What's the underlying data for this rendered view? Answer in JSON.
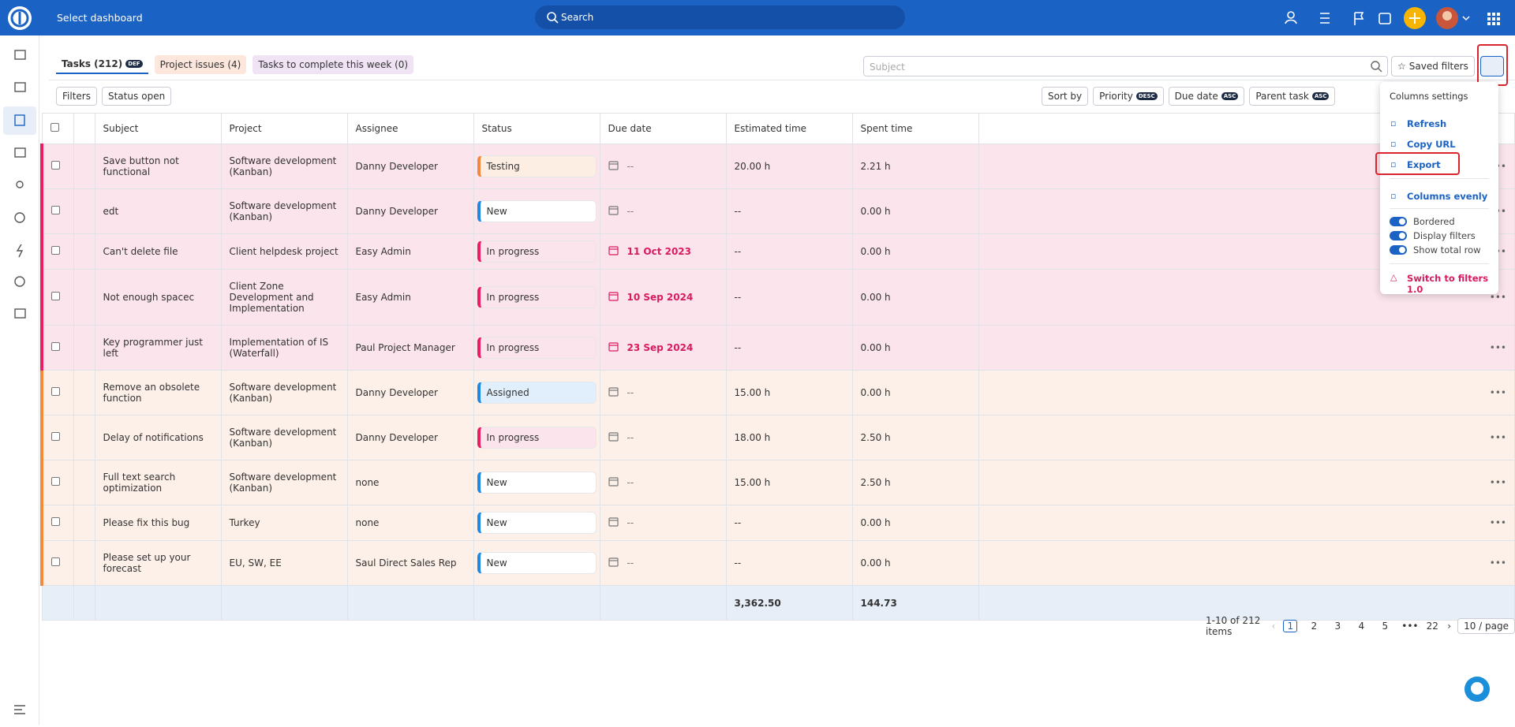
{
  "header": {
    "dashboard": "Select dashboard",
    "search": "Search"
  },
  "tabs": [
    {
      "label": "Tasks (212)",
      "badge": "DEF"
    },
    {
      "label": "Project issues (4)"
    },
    {
      "label": "Tasks to complete this week (0)"
    }
  ],
  "search_placeholder": "Subject",
  "saved_filters": "Saved filters",
  "filters": {
    "button": "Filters",
    "chips": [
      {
        "label": "Status",
        "value": "open"
      }
    ]
  },
  "sort": {
    "button": "Sort by",
    "chips": [
      {
        "label": "Priority",
        "badge": "DESC"
      },
      {
        "label": "Due date",
        "badge": "ASC"
      },
      {
        "label": "Parent task",
        "badge": "ASC"
      }
    ]
  },
  "table": {
    "columns": [
      "Subject",
      "Project",
      "Assignee",
      "Status",
      "Due date",
      "Estimated time",
      "Spent time"
    ],
    "rows": [
      {
        "subject": "Save button not functional",
        "project": "Software development (Kanban)",
        "assignee": "Danny Developer",
        "status": "Testing",
        "due": "--",
        "estimated": "20.00 h",
        "spent": "2.21 h",
        "accent": "#e91e63",
        "bg": "#fbe4ec",
        "status_color": "#f0883e",
        "status_bg": "#fdeee4",
        "overdue": false
      },
      {
        "subject": "edt",
        "project": "Software development (Kanban)",
        "assignee": "Danny Developer",
        "status": "New",
        "due": "--",
        "estimated": "--",
        "spent": "0.00 h",
        "accent": "#e91e63",
        "bg": "#fbe4ec",
        "status_color": "#1e88e5",
        "status_bg": "#ffffff",
        "overdue": false
      },
      {
        "subject": "Can't delete file",
        "project": "Client helpdesk project",
        "assignee": "Easy Admin",
        "status": "In progress",
        "due": "11 Oct 2023",
        "estimated": "--",
        "spent": "0.00 h",
        "accent": "#e91e63",
        "bg": "#fbe4ec",
        "status_color": "#e91e63",
        "status_bg": "#fbe4ec",
        "overdue": true
      },
      {
        "subject": "Not enough spacec",
        "project": "Client Zone Development and Implementation",
        "assignee": "Easy Admin",
        "status": "In progress",
        "due": "10 Sep 2024",
        "estimated": "--",
        "spent": "0.00 h",
        "accent": "#e91e63",
        "bg": "#fbe4ec",
        "status_color": "#e91e63",
        "status_bg": "#fbe4ec",
        "overdue": true
      },
      {
        "subject": "Key programmer just left",
        "project": "Implementation of IS (Waterfall)",
        "assignee": "Paul Project Manager",
        "status": "In progress",
        "due": "23 Sep 2024",
        "estimated": "--",
        "spent": "0.00 h",
        "accent": "#e91e63",
        "bg": "#fbe4ec",
        "status_color": "#e91e63",
        "status_bg": "#fbe4ec",
        "overdue": true
      },
      {
        "subject": "Remove an obsolete function",
        "project": "Software development (Kanban)",
        "assignee": "Danny Developer",
        "status": "Assigned",
        "due": "--",
        "estimated": "15.00 h",
        "spent": "0.00 h",
        "accent": "#f08a3c",
        "bg": "#fdf0e8",
        "status_color": "#1e88e5",
        "status_bg": "#e1eefb",
        "overdue": false
      },
      {
        "subject": "Delay of notifications",
        "project": "Software development (Kanban)",
        "assignee": "Danny Developer",
        "status": "In progress",
        "due": "--",
        "estimated": "18.00 h",
        "spent": "2.50 h",
        "accent": "#f08a3c",
        "bg": "#fdf0e8",
        "status_color": "#e91e63",
        "status_bg": "#fbe4ec",
        "overdue": false
      },
      {
        "subject": "Full text search optimization",
        "project": "Software development (Kanban)",
        "assignee": "none",
        "status": "New",
        "due": "--",
        "estimated": "15.00 h",
        "spent": "2.50 h",
        "accent": "#f08a3c",
        "bg": "#fdf0e8",
        "status_color": "#1e88e5",
        "status_bg": "#ffffff",
        "overdue": false
      },
      {
        "subject": "Please fix this bug",
        "project": "Turkey",
        "assignee": "none",
        "status": "New",
        "due": "--",
        "estimated": "--",
        "spent": "0.00 h",
        "accent": "#f08a3c",
        "bg": "#fdf0e8",
        "status_color": "#1e88e5",
        "status_bg": "#ffffff",
        "overdue": false
      },
      {
        "subject": "Please set up your forecast",
        "project": "EU, SW, EE",
        "assignee": "Saul Direct Sales Rep",
        "status": "New",
        "due": "--",
        "estimated": "--",
        "spent": "0.00 h",
        "accent": "#f08a3c",
        "bg": "#fdf0e8",
        "status_color": "#1e88e5",
        "status_bg": "#ffffff",
        "overdue": false
      }
    ],
    "totals": {
      "estimated": "3,362.50",
      "spent": "144.73"
    }
  },
  "pagination": {
    "summary": "1-10 of 212 items",
    "pages": [
      "1",
      "2",
      "3",
      "4",
      "5",
      "•••",
      "22"
    ],
    "per_page": "10 / page"
  },
  "menu": {
    "title": "Columns settings",
    "actions": [
      "Refresh",
      "Copy URL",
      "Export",
      "Columns evenly"
    ],
    "toggles": [
      "Bordered",
      "Display filters",
      "Show total row"
    ],
    "switch": "Switch to filters 1.0"
  }
}
